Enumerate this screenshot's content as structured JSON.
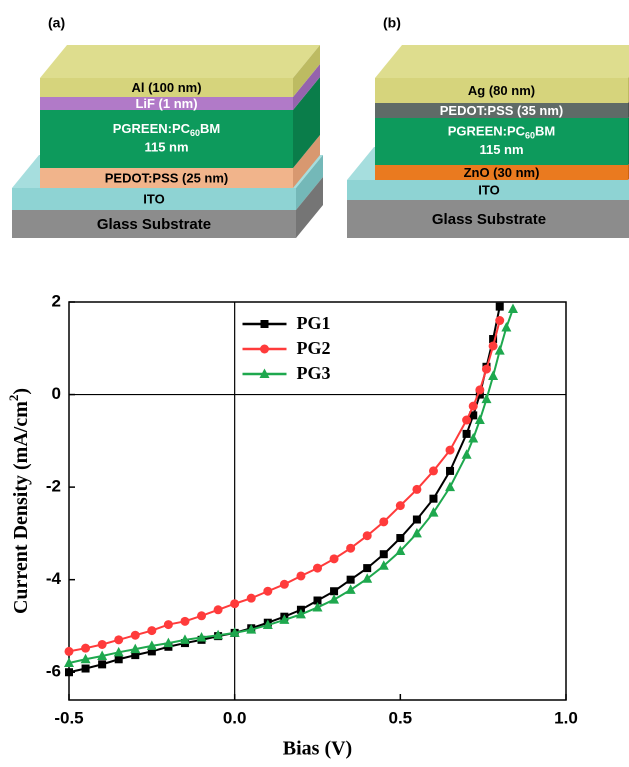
{
  "panels": [
    {
      "label": "(a)",
      "layers": [
        {
          "text": "Al (100 nm)"
        },
        {
          "text": "LiF (1 nm)"
        },
        {
          "parts": [
            "PGREEN:PC",
            "60",
            "BM"
          ],
          "line2": "115 nm"
        },
        {
          "text": "PEDOT:PSS (25 nm)"
        },
        {
          "text": "ITO"
        },
        {
          "text": "Glass Substrate"
        }
      ]
    },
    {
      "label": "(b)",
      "layers": [
        {
          "text": "Ag (80 nm)"
        },
        {
          "text": "PEDOT:PSS (35 nm)"
        },
        {
          "parts": [
            "PGREEN:PC",
            "60",
            "BM"
          ],
          "line2": "115 nm"
        },
        {
          "text": "ZnO (30 nm)"
        },
        {
          "text": "ITO"
        },
        {
          "text": "Glass Substrate"
        }
      ]
    }
  ],
  "chart_data": {
    "type": "line",
    "xlabel": "Bias (V)",
    "ylabel": [
      "Current Density (mA/cm",
      "2",
      ")"
    ],
    "xlim": [
      -0.5,
      1.0
    ],
    "xticks": [
      -0.5,
      {
        "value": 0,
        "label": "0.0"
      },
      0.5,
      {
        "value": 1,
        "label": "1.0"
      }
    ],
    "ylim": [
      -6.6,
      2
    ],
    "yticks": [
      -6,
      -4,
      -2,
      0,
      2
    ],
    "zero_lines": true,
    "legend": "upper center",
    "x": [
      -0.5,
      -0.45,
      -0.4,
      -0.35,
      -0.3,
      -0.25,
      -0.2,
      -0.15,
      -0.1,
      -0.05,
      0,
      0.05,
      0.1,
      0.15,
      0.2,
      0.25,
      0.3,
      0.35,
      0.4,
      0.45,
      0.5,
      0.55,
      0.6,
      0.65,
      0.7,
      0.72,
      0.74,
      0.76,
      0.78,
      0.8,
      0.82,
      0.84
    ],
    "series": [
      {
        "name": "PG1",
        "color": "#000000",
        "marker": "square",
        "values": [
          -6.0,
          -5.92,
          -5.83,
          -5.72,
          -5.63,
          -5.55,
          -5.45,
          -5.37,
          -5.3,
          -5.22,
          -5.15,
          -5.05,
          -4.93,
          -4.8,
          -4.65,
          -4.45,
          -4.25,
          -4.0,
          -3.75,
          -3.45,
          -3.1,
          -2.7,
          -2.25,
          -1.65,
          -0.85,
          -0.45,
          0.0,
          0.6,
          1.2,
          1.9,
          null,
          null
        ]
      },
      {
        "name": "PG2",
        "color": "#ff3b3b",
        "marker": "circle",
        "values": [
          -5.55,
          -5.48,
          -5.4,
          -5.3,
          -5.2,
          -5.1,
          -4.97,
          -4.9,
          -4.78,
          -4.65,
          -4.52,
          -4.4,
          -4.25,
          -4.1,
          -3.92,
          -3.75,
          -3.55,
          -3.32,
          -3.05,
          -2.75,
          -2.4,
          -2.05,
          -1.65,
          -1.2,
          -0.55,
          -0.25,
          0.1,
          0.55,
          1.05,
          1.6,
          null,
          null
        ]
      },
      {
        "name": "PG3",
        "color": "#1ea84e",
        "marker": "triangle",
        "values": [
          -5.8,
          -5.72,
          -5.65,
          -5.57,
          -5.5,
          -5.43,
          -5.37,
          -5.3,
          -5.25,
          -5.2,
          -5.15,
          -5.08,
          -4.98,
          -4.87,
          -4.75,
          -4.6,
          -4.43,
          -4.22,
          -3.98,
          -3.7,
          -3.38,
          -3.0,
          -2.55,
          -2.0,
          -1.3,
          -0.95,
          -0.55,
          -0.1,
          0.4,
          0.95,
          1.45,
          1.85
        ]
      }
    ]
  }
}
